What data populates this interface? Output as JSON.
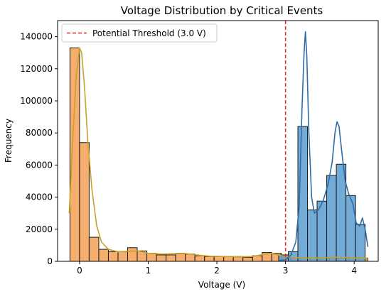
{
  "chart_data": {
    "type": "bar",
    "title": "Voltage Distribution by Critical Events",
    "xlabel": "Voltage (V)",
    "ylabel": "Frequency",
    "xlim": [
      -0.32,
      4.35
    ],
    "ylim": [
      0,
      150000
    ],
    "xticks": [
      0,
      1,
      2,
      3,
      4
    ],
    "yticks": [
      0,
      20000,
      40000,
      60000,
      80000,
      100000,
      120000,
      140000
    ],
    "grid": false,
    "legend": {
      "position": "top-left",
      "entries": [
        {
          "label": "Potential Threshold (3.0 V)",
          "style": "dashed",
          "color": "#d62728"
        }
      ]
    },
    "threshold": {
      "x": 3.0,
      "label": "Potential Threshold (3.0 V)",
      "color": "#d62728"
    },
    "bin_width": 0.14,
    "series": [
      {
        "color": "#f4a359",
        "kde_color": "#c9a227",
        "bins": [
          {
            "x0": -0.14,
            "x1": 0.0,
            "value": 133000
          },
          {
            "x0": 0.0,
            "x1": 0.14,
            "value": 74000
          },
          {
            "x0": 0.14,
            "x1": 0.28,
            "value": 15000
          },
          {
            "x0": 0.28,
            "x1": 0.42,
            "value": 7500
          },
          {
            "x0": 0.42,
            "x1": 0.56,
            "value": 6000
          },
          {
            "x0": 0.56,
            "x1": 0.7,
            "value": 6000
          },
          {
            "x0": 0.7,
            "x1": 0.84,
            "value": 8500
          },
          {
            "x0": 0.84,
            "x1": 0.98,
            "value": 6500
          },
          {
            "x0": 0.98,
            "x1": 1.12,
            "value": 5000
          },
          {
            "x0": 1.12,
            "x1": 1.26,
            "value": 4000
          },
          {
            "x0": 1.26,
            "x1": 1.4,
            "value": 4000
          },
          {
            "x0": 1.4,
            "x1": 1.54,
            "value": 5000
          },
          {
            "x0": 1.54,
            "x1": 1.68,
            "value": 4500
          },
          {
            "x0": 1.68,
            "x1": 1.82,
            "value": 3500
          },
          {
            "x0": 1.82,
            "x1": 1.96,
            "value": 3000
          },
          {
            "x0": 1.96,
            "x1": 2.1,
            "value": 3000
          },
          {
            "x0": 2.1,
            "x1": 2.24,
            "value": 3000
          },
          {
            "x0": 2.24,
            "x1": 2.38,
            "value": 3000
          },
          {
            "x0": 2.38,
            "x1": 2.52,
            "value": 2500
          },
          {
            "x0": 2.52,
            "x1": 2.66,
            "value": 3500
          },
          {
            "x0": 2.66,
            "x1": 2.8,
            "value": 5500
          },
          {
            "x0": 2.8,
            "x1": 2.94,
            "value": 5000
          },
          {
            "x0": 2.94,
            "x1": 3.08,
            "value": 3000
          },
          {
            "x0": 3.08,
            "x1": 3.22,
            "value": 2500
          },
          {
            "x0": 3.22,
            "x1": 3.36,
            "value": 2000
          },
          {
            "x0": 3.36,
            "x1": 3.5,
            "value": 2000
          },
          {
            "x0": 3.5,
            "x1": 3.64,
            "value": 2000
          },
          {
            "x0": 3.64,
            "x1": 3.78,
            "value": 2500
          },
          {
            "x0": 3.78,
            "x1": 3.92,
            "value": 2500
          },
          {
            "x0": 3.92,
            "x1": 4.06,
            "value": 2000
          },
          {
            "x0": 4.06,
            "x1": 4.2,
            "value": 2000
          }
        ],
        "kde": [
          [
            -0.15,
            30000
          ],
          [
            -0.1,
            75000
          ],
          [
            -0.05,
            115000
          ],
          [
            0.0,
            133000
          ],
          [
            0.03,
            130000
          ],
          [
            0.07,
            110000
          ],
          [
            0.12,
            75000
          ],
          [
            0.18,
            45000
          ],
          [
            0.25,
            22000
          ],
          [
            0.32,
            12000
          ],
          [
            0.42,
            7500
          ],
          [
            0.55,
            6000
          ],
          [
            0.7,
            6200
          ],
          [
            0.85,
            6500
          ],
          [
            1.0,
            5000
          ],
          [
            1.2,
            4500
          ],
          [
            1.4,
            4800
          ],
          [
            1.55,
            4800
          ],
          [
            1.7,
            4000
          ],
          [
            1.9,
            3200
          ],
          [
            2.1,
            3000
          ],
          [
            2.3,
            2800
          ],
          [
            2.5,
            3000
          ],
          [
            2.65,
            4000
          ],
          [
            2.8,
            5000
          ],
          [
            2.95,
            3500
          ],
          [
            3.1,
            2500
          ],
          [
            3.3,
            2000
          ],
          [
            3.5,
            2000
          ],
          [
            3.7,
            2500
          ],
          [
            3.85,
            2500
          ],
          [
            4.0,
            2000
          ],
          [
            4.2,
            2000
          ]
        ]
      },
      {
        "color": "#5f9fd0",
        "kde_color": "#2f6ba8",
        "bins": [
          {
            "x0": 2.9,
            "x1": 3.04,
            "value": 4000
          },
          {
            "x0": 3.04,
            "x1": 3.18,
            "value": 6000
          },
          {
            "x0": 3.18,
            "x1": 3.32,
            "value": 84000
          },
          {
            "x0": 3.32,
            "x1": 3.46,
            "value": 32000
          },
          {
            "x0": 3.46,
            "x1": 3.6,
            "value": 37500
          },
          {
            "x0": 3.6,
            "x1": 3.74,
            "value": 53500
          },
          {
            "x0": 3.74,
            "x1": 3.88,
            "value": 60500
          },
          {
            "x0": 3.88,
            "x1": 4.02,
            "value": 41000
          },
          {
            "x0": 4.02,
            "x1": 4.16,
            "value": 23000
          }
        ],
        "kde": [
          [
            2.9,
            500
          ],
          [
            3.0,
            1000
          ],
          [
            3.08,
            4000
          ],
          [
            3.15,
            12000
          ],
          [
            3.2,
            35000
          ],
          [
            3.24,
            95000
          ],
          [
            3.27,
            130000
          ],
          [
            3.29,
            143000
          ],
          [
            3.31,
            128000
          ],
          [
            3.34,
            80000
          ],
          [
            3.38,
            40000
          ],
          [
            3.42,
            30000
          ],
          [
            3.48,
            32000
          ],
          [
            3.55,
            38000
          ],
          [
            3.62,
            48000
          ],
          [
            3.68,
            62000
          ],
          [
            3.72,
            80000
          ],
          [
            3.75,
            87000
          ],
          [
            3.78,
            84000
          ],
          [
            3.82,
            68000
          ],
          [
            3.87,
            50000
          ],
          [
            3.92,
            42000
          ],
          [
            3.98,
            36000
          ],
          [
            4.03,
            24000
          ],
          [
            4.08,
            22000
          ],
          [
            4.12,
            27000
          ],
          [
            4.16,
            20000
          ],
          [
            4.2,
            9000
          ]
        ]
      }
    ]
  }
}
